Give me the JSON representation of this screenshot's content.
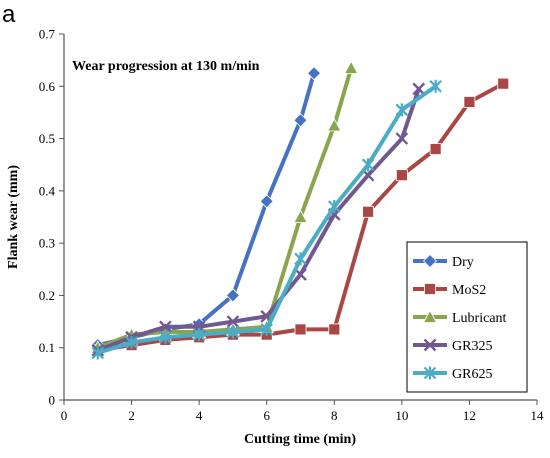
{
  "panel_label": "a",
  "chart_data": {
    "type": "line",
    "annotation": "Wear progression at 130 m/min",
    "xlabel": "Cutting time (min)",
    "ylabel": "Flank wear (mm)",
    "xlim": [
      0,
      14
    ],
    "ylim": [
      0,
      0.7
    ],
    "xticks": [
      0,
      2,
      4,
      6,
      8,
      10,
      12,
      14
    ],
    "yticks": [
      0,
      0.1,
      0.2,
      0.3,
      0.4,
      0.5,
      0.6,
      0.7
    ],
    "grid": false,
    "legend_position": "bottom-right",
    "series": [
      {
        "name": "Dry",
        "color": "#4572c4",
        "marker": "diamond",
        "x": [
          1,
          2,
          3,
          4,
          5,
          6,
          7,
          7.4
        ],
        "y": [
          0.105,
          0.12,
          0.135,
          0.145,
          0.2,
          0.38,
          0.535,
          0.625
        ]
      },
      {
        "name": "MoS2",
        "color": "#aa4643",
        "marker": "square",
        "x": [
          1,
          2,
          3,
          4,
          5,
          6,
          7,
          8,
          9,
          10,
          11,
          12,
          13
        ],
        "y": [
          0.095,
          0.105,
          0.115,
          0.12,
          0.125,
          0.125,
          0.135,
          0.135,
          0.36,
          0.43,
          0.48,
          0.57,
          0.605
        ]
      },
      {
        "name": "Lubricant",
        "color": "#89a54e",
        "marker": "triangle",
        "x": [
          1,
          2,
          3,
          4,
          5,
          6,
          7,
          8,
          8.5
        ],
        "y": [
          0.1,
          0.125,
          0.13,
          0.13,
          0.135,
          0.14,
          0.35,
          0.525,
          0.635
        ]
      },
      {
        "name": "GR325",
        "color": "#71588f",
        "marker": "x",
        "x": [
          1,
          2,
          3,
          4,
          5,
          6,
          7,
          8,
          9,
          10,
          10.5
        ],
        "y": [
          0.095,
          0.12,
          0.14,
          0.14,
          0.15,
          0.16,
          0.24,
          0.355,
          0.43,
          0.5,
          0.595
        ]
      },
      {
        "name": "GR625",
        "color": "#4bacc6",
        "marker": "star",
        "x": [
          1,
          2,
          3,
          4,
          5,
          6,
          7,
          8,
          9,
          10,
          11
        ],
        "y": [
          0.09,
          0.11,
          0.12,
          0.125,
          0.13,
          0.135,
          0.27,
          0.37,
          0.45,
          0.555,
          0.6
        ]
      }
    ]
  }
}
